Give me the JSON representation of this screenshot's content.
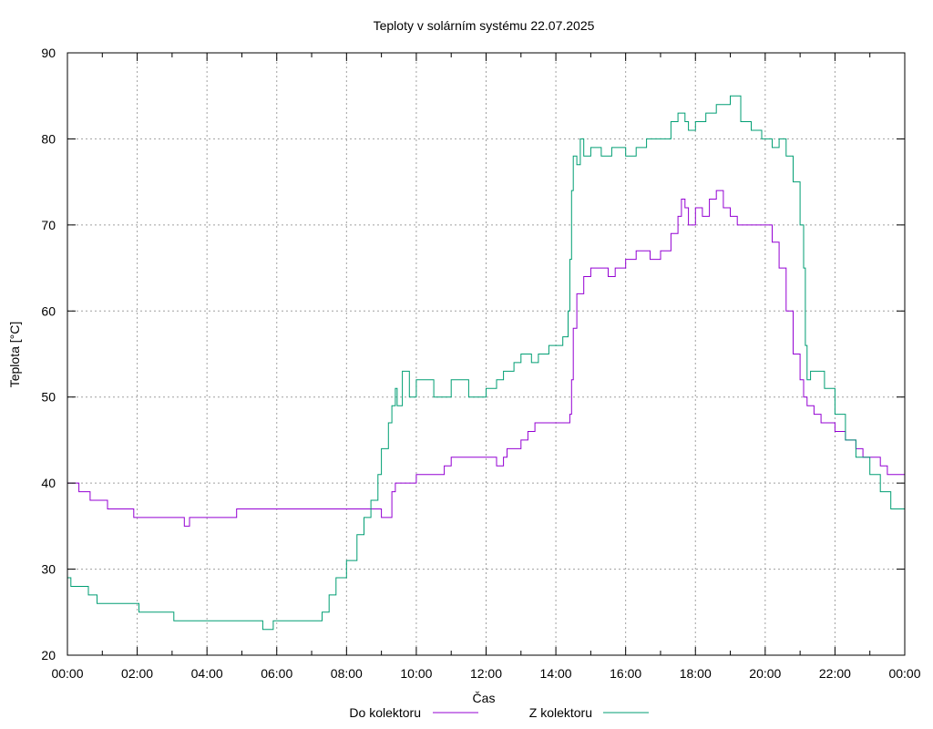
{
  "chart_data": {
    "type": "line",
    "title": "Teploty v solárním systému 22.07.2025",
    "xlabel": "Čas",
    "ylabel": "Teplota [°C]",
    "xlim": [
      0,
      24
    ],
    "ylim": [
      20,
      90
    ],
    "x_ticks": [
      "00:00",
      "02:00",
      "04:00",
      "06:00",
      "08:00",
      "10:00",
      "12:00",
      "14:00",
      "16:00",
      "18:00",
      "20:00",
      "22:00",
      "00:00"
    ],
    "y_ticks": [
      "20",
      "30",
      "40",
      "50",
      "60",
      "70",
      "80",
      "90"
    ],
    "grid": true,
    "legend_position": "bottom",
    "series": [
      {
        "name": "Do kolektoru",
        "color": "#9400d3",
        "x": [
          0,
          0.3,
          0.33,
          0.6,
          0.65,
          1.1,
          1.15,
          1.85,
          1.9,
          2.5,
          2.55,
          3.3,
          3.35,
          3.45,
          3.5,
          4.8,
          4.85,
          5.6,
          5.65,
          7.5,
          8.9,
          9.0,
          9.25,
          9.3,
          9.4,
          10.0,
          10.7,
          10.8,
          11.0,
          11.1,
          11.8,
          12.1,
          12.3,
          12.5,
          12.6,
          12.75,
          13.0,
          13.2,
          13.4,
          13.6,
          14.0,
          14.2,
          14.4,
          14.45,
          14.5,
          14.6,
          14.8,
          15.0,
          15.3,
          15.5,
          15.7,
          16.0,
          16.3,
          16.7,
          17.0,
          17.3,
          17.5,
          17.6,
          17.7,
          17.8,
          18.0,
          18.2,
          18.4,
          18.6,
          18.8,
          19.0,
          19.2,
          19.5,
          19.7,
          20.0,
          20.2,
          20.4,
          20.6,
          20.8,
          21.0,
          21.1,
          21.2,
          21.4,
          21.6,
          21.8,
          22.0,
          22.3,
          22.6,
          22.8,
          23.0,
          23.3,
          23.5,
          23.7,
          24.0
        ],
        "y": [
          40,
          40,
          39,
          39,
          38,
          38,
          37,
          37,
          36,
          36,
          36,
          36,
          35,
          35,
          36,
          36,
          37,
          37,
          37,
          37,
          37,
          36,
          36,
          39,
          40,
          41,
          41,
          42,
          43,
          43,
          43,
          43,
          42,
          43,
          44,
          44,
          45,
          46,
          47,
          47,
          47,
          47,
          48,
          52,
          58,
          62,
          64,
          65,
          65,
          64,
          65,
          66,
          67,
          66,
          67,
          69,
          71,
          73,
          72,
          70,
          72,
          71,
          73,
          74,
          72,
          71,
          70,
          70,
          70,
          70,
          68,
          65,
          60,
          55,
          52,
          50,
          49,
          48,
          47,
          47,
          46,
          45,
          44,
          43,
          43,
          42,
          41,
          41,
          40
        ]
      },
      {
        "name": "Z kolektoru",
        "color": "#009e73",
        "x": [
          0,
          0.05,
          0.1,
          0.5,
          0.6,
          0.8,
          0.85,
          1.3,
          1.35,
          2.0,
          2.05,
          3.0,
          3.05,
          4.0,
          4.5,
          5.0,
          5.5,
          5.6,
          5.8,
          5.9,
          6.0,
          6.2,
          6.5,
          7.0,
          7.3,
          7.5,
          7.7,
          8.0,
          8.3,
          8.5,
          8.7,
          8.9,
          9.0,
          9.2,
          9.3,
          9.4,
          9.45,
          9.6,
          9.8,
          10.0,
          10.5,
          11.0,
          11.5,
          12.0,
          12.3,
          12.5,
          12.8,
          13.0,
          13.3,
          13.5,
          13.8,
          14.0,
          14.2,
          14.35,
          14.4,
          14.45,
          14.5,
          14.6,
          14.7,
          14.8,
          15.0,
          15.3,
          15.6,
          16.0,
          16.3,
          16.6,
          17.0,
          17.3,
          17.5,
          17.7,
          17.8,
          18.0,
          18.3,
          18.6,
          19.0,
          19.3,
          19.6,
          19.9,
          20.0,
          20.2,
          20.4,
          20.6,
          20.8,
          21.0,
          21.1,
          21.15,
          21.2,
          21.3,
          21.5,
          21.7,
          22.0,
          22.3,
          22.6,
          23.0,
          23.3,
          23.6,
          24.0
        ],
        "y": [
          29,
          29,
          28,
          28,
          27,
          27,
          26,
          26,
          26,
          26,
          25,
          25,
          24,
          24,
          24,
          24,
          24,
          23,
          23,
          24,
          24,
          24,
          24,
          24,
          25,
          27,
          29,
          31,
          34,
          36,
          38,
          41,
          44,
          47,
          49,
          51,
          49,
          53,
          50,
          52,
          50,
          52,
          50,
          51,
          52,
          53,
          54,
          55,
          54,
          55,
          56,
          56,
          57,
          60,
          66,
          74,
          78,
          77,
          80,
          78,
          79,
          78,
          79,
          78,
          79,
          80,
          80,
          82,
          83,
          82,
          81,
          82,
          83,
          84,
          85,
          82,
          81,
          80,
          80,
          79,
          80,
          78,
          75,
          70,
          65,
          56,
          52,
          53,
          53,
          51,
          48,
          45,
          43,
          41,
          39,
          37,
          35
        ]
      }
    ]
  }
}
